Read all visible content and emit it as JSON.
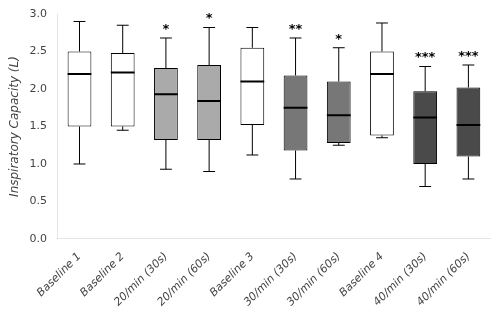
{
  "chart_data": {
    "type": "box",
    "categories": [
      "Baseline 1",
      "Baseline 2",
      "20/min (30s)",
      "20/min (60s)",
      "Baseline 3",
      "30/min (30s)",
      "30/min (60s)",
      "Baseline 4",
      "40/min (30s)",
      "40/min (60s)"
    ],
    "boxes": [
      {
        "whislo": 1.0,
        "q1": 1.5,
        "med": 2.2,
        "q3": 2.5,
        "whishi": 2.9
      },
      {
        "whislo": 1.45,
        "q1": 1.5,
        "med": 2.22,
        "q3": 2.48,
        "whishi": 2.85
      },
      {
        "whislo": 0.93,
        "q1": 1.32,
        "med": 1.93,
        "q3": 2.28,
        "whishi": 2.68
      },
      {
        "whislo": 0.9,
        "q1": 1.32,
        "med": 1.84,
        "q3": 2.32,
        "whishi": 2.82
      },
      {
        "whislo": 1.12,
        "q1": 1.52,
        "med": 2.1,
        "q3": 2.55,
        "whishi": 2.82
      },
      {
        "whislo": 0.8,
        "q1": 1.18,
        "med": 1.75,
        "q3": 2.18,
        "whishi": 2.68
      },
      {
        "whislo": 1.25,
        "q1": 1.28,
        "med": 1.65,
        "q3": 2.1,
        "whishi": 2.55
      },
      {
        "whislo": 1.35,
        "q1": 1.38,
        "med": 2.2,
        "q3": 2.5,
        "whishi": 2.88
      },
      {
        "whislo": 0.7,
        "q1": 1.0,
        "med": 1.62,
        "q3": 1.97,
        "whishi": 2.3
      },
      {
        "whislo": 0.8,
        "q1": 1.1,
        "med": 1.52,
        "q3": 2.02,
        "whishi": 2.32
      }
    ],
    "colors": [
      "white",
      "white",
      "#aaaaaa",
      "#aaaaaa",
      "white",
      "#777777",
      "#777777",
      "white",
      "#4a4a4a",
      "#4a4a4a"
    ],
    "annotations": [
      {
        "category": "20/min (30s)",
        "text": "*"
      },
      {
        "category": "20/min (60s)",
        "text": "*"
      },
      {
        "category": "30/min (30s)",
        "text": "**"
      },
      {
        "category": "30/min (60s)",
        "text": "*"
      },
      {
        "category": "40/min (30s)",
        "text": "***"
      },
      {
        "category": "40/min (60s)",
        "text": "***"
      }
    ],
    "ylabel": "Inspiratory Capacity (L)",
    "ylim": [
      0.0,
      3.0
    ],
    "yticks": [
      {
        "value": 0,
        "label": "0.0"
      },
      0.5,
      {
        "value": 1,
        "label": "1.0"
      },
      1.5,
      {
        "value": 2,
        "label": "2.0"
      },
      2.5,
      {
        "value": 3,
        "label": "3.0"
      }
    ],
    "grid": false
  }
}
